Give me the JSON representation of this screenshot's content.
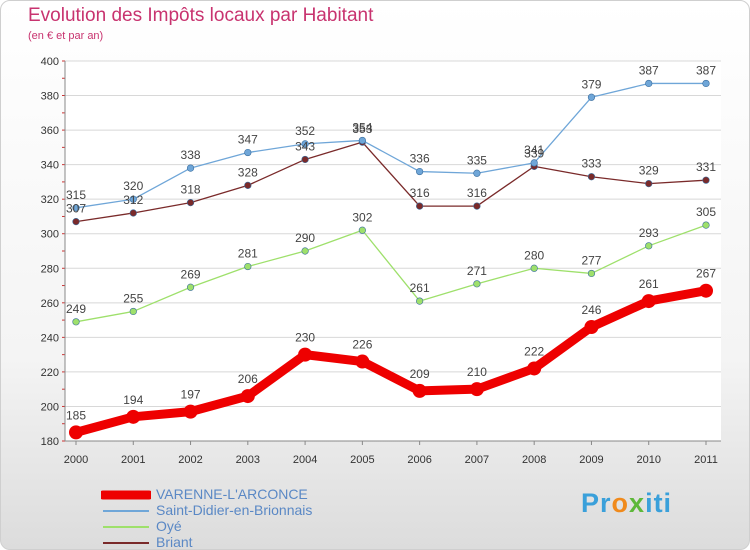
{
  "title": "Evolution des Impôts locaux par Habitant",
  "subtitle": "(en € et par an)",
  "brand": {
    "parts": [
      "Pr",
      "o",
      "x",
      "iti"
    ],
    "colors": [
      "#3aa0da",
      "#f08a1c",
      "#5db83a",
      "#3aa0da"
    ]
  },
  "chart_data": {
    "type": "line",
    "x": [
      "2000",
      "2001",
      "2002",
      "2003",
      "2004",
      "2005",
      "2006",
      "2007",
      "2008",
      "2009",
      "2010",
      "2011"
    ],
    "ylim": [
      180,
      400
    ],
    "yticks": [
      180,
      200,
      220,
      240,
      260,
      280,
      300,
      320,
      340,
      360,
      380,
      400
    ],
    "grid": "horizontal",
    "legend_position": "bottom-left",
    "series": [
      {
        "name": "VARENNE-L'ARCONCE",
        "color": "#ee0000",
        "values": [
          185,
          194,
          197,
          206,
          230,
          226,
          209,
          210,
          222,
          246,
          261,
          267
        ]
      },
      {
        "name": "Saint-Didier-en-Brionnais",
        "color": "#6fa6d8",
        "values": [
          315,
          320,
          338,
          347,
          352,
          354,
          336,
          335,
          341,
          379,
          387,
          387
        ]
      },
      {
        "name": "Oyé",
        "color": "#9ee06b",
        "values": [
          249,
          255,
          269,
          281,
          290,
          302,
          261,
          271,
          280,
          277,
          293,
          305
        ]
      },
      {
        "name": "Briant",
        "color": "#7a2a2a",
        "values": [
          307,
          312,
          318,
          328,
          343,
          353,
          316,
          316,
          339,
          333,
          329,
          331
        ]
      }
    ]
  }
}
